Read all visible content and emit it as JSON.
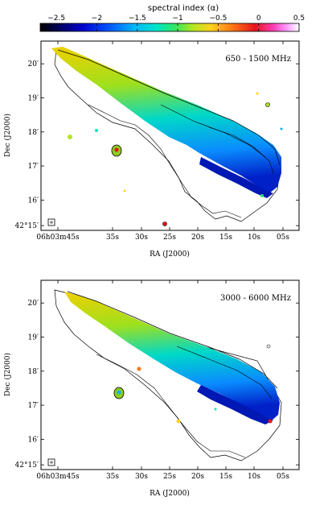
{
  "colorbar": {
    "title": "spectral index (α)",
    "ticks": [
      "−2.5",
      "−2",
      "−1.5",
      "−1",
      "−0.5",
      "0",
      "0.5"
    ],
    "tick_values": [
      -2.5,
      -2,
      -1.5,
      -1,
      -0.5,
      0,
      0.5
    ],
    "range": [
      -2.7,
      0.5
    ],
    "stops": [
      "#000000",
      "#00005a",
      "#0000c8",
      "#0050ff",
      "#00b4ff",
      "#00e6c8",
      "#32e664",
      "#b4e61e",
      "#ffd21e",
      "#ff7814",
      "#e6141e",
      "#ff3cb4",
      "#ff96ff",
      "#ffffff"
    ]
  },
  "panels": [
    {
      "label": "650 - 1500 MHz",
      "y_axis_label": "Dec (J2000)",
      "x_axis_label": "RA (J2000)",
      "yticks": [
        "20′",
        "19′",
        "18′",
        "17′",
        "16′",
        "42°15′"
      ],
      "xticks": [
        "06h03m45s",
        "35s",
        "30s",
        "25s",
        "20s",
        "15s",
        "10s",
        "05s"
      ]
    },
    {
      "label": "3000 - 6000 MHz",
      "y_axis_label": "Dec (J2000)",
      "x_axis_label": "RA (J2000)",
      "yticks": [
        "20′",
        "19′",
        "18′",
        "17′",
        "16′",
        "42°15′"
      ],
      "xticks": [
        "06h03m45s",
        "35s",
        "30s",
        "25s",
        "20s",
        "15s",
        "10s",
        "05s"
      ]
    }
  ]
}
